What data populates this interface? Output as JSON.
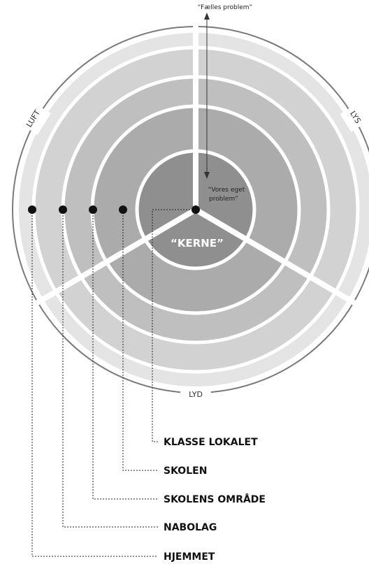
{
  "diagram": {
    "shared_problem": "“Fælles problem”",
    "own_problem": [
      "“Vores eget",
      "problem”"
    ],
    "core": "“KERNE”",
    "edges": [
      "LUFT",
      "LYS",
      "LYD"
    ],
    "levels": [
      "KLASSE LOKALET",
      "SKOLEN",
      "SKOLENS OMRÅDE",
      "NABOLAG",
      "HJEMMET"
    ]
  }
}
